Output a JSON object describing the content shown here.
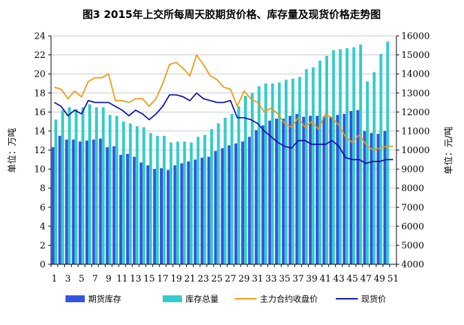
{
  "chart_data": {
    "type": "bar",
    "title": "图3  2015年上交所每周天胶期货价格、库存量及现货价格走势图",
    "ylabel_left": "单位：万吨",
    "ylabel_right": "单位：元/吨",
    "ylim_left": [
      0,
      24
    ],
    "ylim_right": [
      4000,
      16000
    ],
    "yticks_left": [
      "0",
      "2",
      "4",
      "6",
      "8",
      "10",
      "12",
      "14",
      "16",
      "18",
      "20",
      "22",
      "24"
    ],
    "yticks_right": [
      "4000",
      "5000",
      "6000",
      "7000",
      "8000",
      "9000",
      "10000",
      "11000",
      "12000",
      "13000",
      "14000",
      "15000",
      "16000"
    ],
    "x_tick_labels": [
      "1",
      "3",
      "5",
      "7",
      "9",
      "11",
      "13",
      "15",
      "17",
      "19",
      "21",
      "23",
      "25",
      "27",
      "29",
      "31",
      "33",
      "35",
      "37",
      "39",
      "41",
      "43",
      "45",
      "47",
      "49",
      "51"
    ],
    "weeks": [
      1,
      2,
      3,
      4,
      5,
      6,
      7,
      8,
      9,
      10,
      11,
      12,
      13,
      14,
      15,
      16,
      17,
      18,
      19,
      20,
      21,
      22,
      23,
      24,
      25,
      26,
      27,
      28,
      29,
      30,
      31,
      32,
      33,
      34,
      35,
      36,
      37,
      38,
      39,
      40,
      41,
      42,
      43,
      44,
      45,
      46,
      47,
      48,
      49,
      50,
      51
    ],
    "grid": true,
    "legend_position": "bottom",
    "series": [
      {
        "name": "期货库存",
        "kind": "bar",
        "axis": "left",
        "color": "#3355dd",
        "values": [
          12.3,
          13.5,
          13.1,
          13.1,
          12.9,
          13.0,
          13.1,
          13.2,
          12.3,
          12.4,
          11.5,
          11.6,
          11.3,
          10.7,
          10.4,
          10.0,
          10.1,
          9.9,
          10.4,
          10.6,
          10.8,
          11.0,
          11.2,
          11.3,
          11.9,
          12.2,
          12.5,
          12.7,
          12.9,
          13.4,
          14.1,
          14.6,
          15.1,
          15.3,
          15.3,
          15.6,
          15.8,
          15.5,
          15.6,
          15.6,
          15.5,
          15.5,
          15.7,
          15.8,
          16.1,
          16.2,
          14.0,
          13.8,
          13.7,
          14.0,
          0
        ]
      },
      {
        "name": "库存总量",
        "kind": "bar",
        "axis": "left",
        "color": "#33cccc",
        "values": [
          15.2,
          16.2,
          16.5,
          16.3,
          16.5,
          16.8,
          16.5,
          16.5,
          15.7,
          15.6,
          15.0,
          14.8,
          14.5,
          14.4,
          13.8,
          13.5,
          13.5,
          12.8,
          12.9,
          12.9,
          12.8,
          13.4,
          13.6,
          14.2,
          14.8,
          15.4,
          15.8,
          16.6,
          17.7,
          18.0,
          18.7,
          19.0,
          19.0,
          19.1,
          19.4,
          19.5,
          19.7,
          20.5,
          20.7,
          21.4,
          21.9,
          22.5,
          22.6,
          22.7,
          22.8,
          23.1,
          19.2,
          20.2,
          22.1,
          23.4,
          0
        ]
      },
      {
        "name": "主力合约收盘价",
        "kind": "line",
        "axis": "right",
        "color": "#ee9911",
        "values": [
          13300,
          13200,
          12700,
          13100,
          12800,
          13600,
          13800,
          13800,
          14000,
          12600,
          12600,
          12500,
          12700,
          12700,
          12300,
          12700,
          13500,
          14500,
          14600,
          14300,
          13900,
          15000,
          14500,
          13900,
          13700,
          13300,
          13200,
          12300,
          13100,
          12700,
          12500,
          12000,
          12200,
          11900,
          11400,
          11200,
          11700,
          11200,
          11500,
          11100,
          11900,
          11700,
          11300,
          10700,
          10400,
          10800,
          10300,
          10000,
          10100,
          10200,
          10200
        ]
      },
      {
        "name": "现货价",
        "kind": "line",
        "axis": "right",
        "color": "#0a12aa",
        "values": [
          12500,
          12300,
          11800,
          12100,
          11900,
          12600,
          12500,
          12500,
          12500,
          12300,
          12100,
          11800,
          12100,
          11900,
          11600,
          11900,
          12300,
          12900,
          12900,
          12800,
          12600,
          13000,
          12700,
          12600,
          12500,
          12500,
          12600,
          11700,
          11700,
          11600,
          11400,
          11000,
          10700,
          10400,
          10200,
          10100,
          10500,
          10500,
          10300,
          10300,
          10300,
          10500,
          10200,
          9600,
          9500,
          9500,
          9300,
          9400,
          9400,
          9500,
          9500
        ]
      }
    ]
  }
}
